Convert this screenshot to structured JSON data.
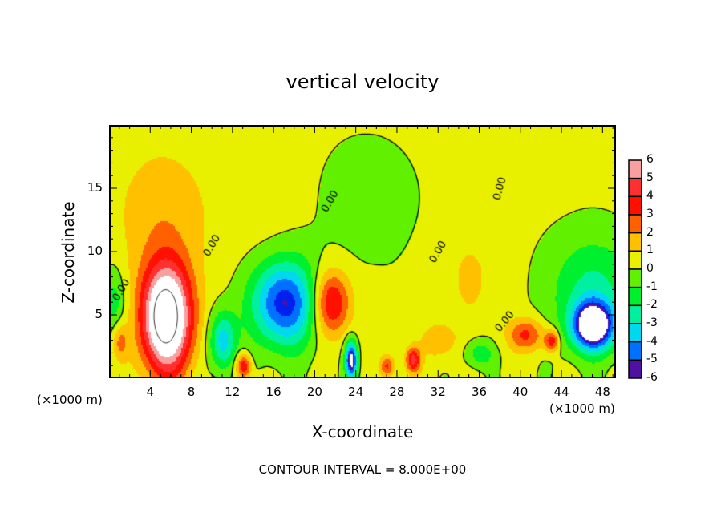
{
  "chart_data": {
    "type": "heatmap",
    "title": "vertical velocity",
    "xlabel": "X-coordinate",
    "ylabel": "Z-coordinate",
    "x_unit_label": "(×1000 m)",
    "x_unit_label_right": "(×1000 m)",
    "note": "CONTOUR INTERVAL = 8.000E+00",
    "xlim": [
      0,
      49.3
    ],
    "ylim": [
      0,
      20
    ],
    "x_ticks": [
      "4",
      "8",
      "12",
      "16",
      "20",
      "24",
      "28",
      "32",
      "36",
      "40",
      "44",
      "48"
    ],
    "y_ticks": [
      "5",
      "10",
      "15"
    ],
    "contour_level": 0,
    "contour_labels": [
      "0.00",
      "0.00",
      "0.00",
      "0.00",
      "0.00",
      "0.00"
    ],
    "colorbar": {
      "labels": [
        "6",
        "5",
        "4",
        "3",
        "2",
        "1",
        "0",
        "-1",
        "-2",
        "-3",
        "-4",
        "-5",
        "-6"
      ],
      "colors": [
        "#f8a0a0",
        "#ff3030",
        "#ff1000",
        "#ff6000",
        "#ffc000",
        "#e8f000",
        "#60f000",
        "#00f030",
        "#00f0a0",
        "#00d8f0",
        "#0070ff",
        "#0020f0",
        "#5010a0"
      ]
    },
    "features": [
      {
        "x": 5.5,
        "z": 4.8,
        "amp": 9.5,
        "sx": 1.7,
        "sz": 3.0
      },
      {
        "x": 5,
        "z": 13,
        "amp": 1.4,
        "sx": 3.2,
        "sz": 4
      },
      {
        "x": 17,
        "z": 6,
        "amp": -5.8,
        "sx": 2.3,
        "sz": 2.4
      },
      {
        "x": 21.5,
        "z": 6,
        "amp": 4.5,
        "sx": 1.3,
        "sz": 1.8
      },
      {
        "x": 11,
        "z": 3,
        "amp": -3.8,
        "sx": 0.9,
        "sz": 1.6
      },
      {
        "x": 47,
        "z": 4.2,
        "amp": -8,
        "sx": 1.4,
        "sz": 1.3
      },
      {
        "x": 47,
        "z": 7,
        "amp": -2.5,
        "sx": 3,
        "sz": 3
      },
      {
        "x": 13,
        "z": 1,
        "amp": 4,
        "sx": 0.5,
        "sz": 0.7
      },
      {
        "x": 23.5,
        "z": 1.5,
        "amp": -7,
        "sx": 0.4,
        "sz": 1
      },
      {
        "x": 29.5,
        "z": 1.5,
        "amp": 4.2,
        "sx": 0.5,
        "sz": 0.7
      },
      {
        "x": 27,
        "z": 1,
        "amp": 3,
        "sx": 0.5,
        "sz": 0.6
      },
      {
        "x": 40.5,
        "z": 3.5,
        "amp": 3,
        "sx": 1.3,
        "sz": 0.9
      },
      {
        "x": 43,
        "z": 3,
        "amp": 3.6,
        "sx": 0.5,
        "sz": 0.6
      },
      {
        "x": 35,
        "z": 8,
        "amp": 0.9,
        "sx": 2,
        "sz": 3
      },
      {
        "x": 0.5,
        "z": 6,
        "amp": -1.8,
        "sx": 0.8,
        "sz": 2
      },
      {
        "x": 1,
        "z": 3,
        "amp": 2.2,
        "sx": 0.5,
        "sz": 1
      },
      {
        "x": 25,
        "z": 14,
        "amp": -0.6,
        "sx": 4,
        "sz": 4
      },
      {
        "x": 14,
        "z": 15,
        "amp": 0.5,
        "sx": 3,
        "sz": 4
      },
      {
        "x": 36,
        "z": 2,
        "amp": -2,
        "sx": 1,
        "sz": 0.8
      },
      {
        "x": 32,
        "z": 3,
        "amp": 1.5,
        "sx": 1.2,
        "sz": 1
      }
    ]
  }
}
